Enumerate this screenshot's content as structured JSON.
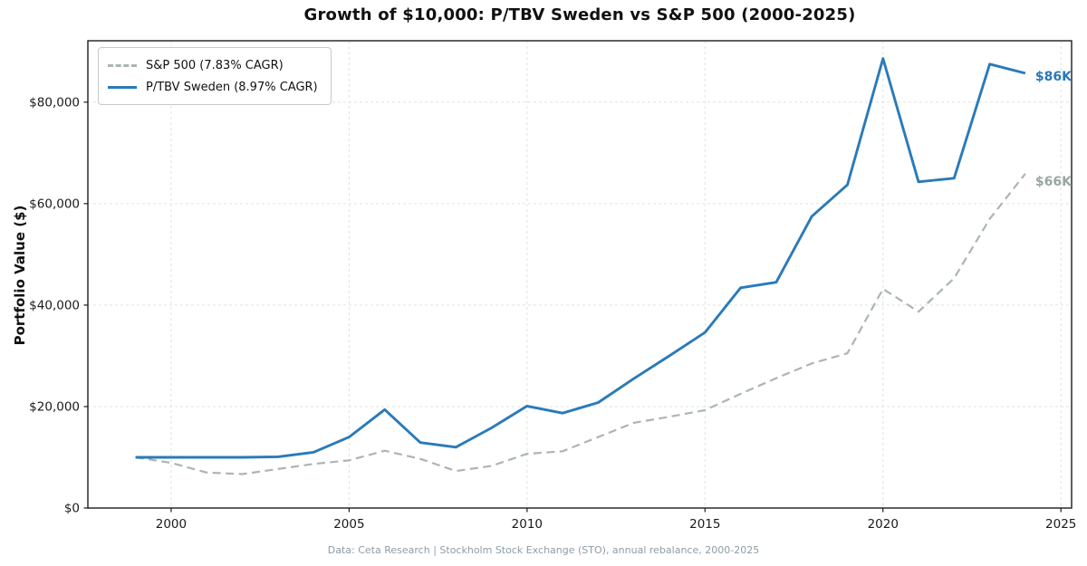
{
  "title": "Growth of $10,000: P/TBV Sweden vs S&P 500 (2000-2025)",
  "y_axis_label": "Portfolio Value ($)",
  "footer": "Data: Ceta Research | Stockholm Stock Exchange (STO), annual rebalance, 2000-2025",
  "legend": {
    "items": [
      {
        "label": "S&P 500 (7.83% CAGR)",
        "style": "dashed"
      },
      {
        "label": "P/TBV Sweden (8.97% CAGR)",
        "style": "solid"
      }
    ]
  },
  "colors": {
    "sweden_blue": "#2a7ab9",
    "sp500_gray": "#abb5b3",
    "sweden_label": "#2878b8",
    "sp500_label": "#99a5a3",
    "grid": "#dfe3e3",
    "spine": "#1c1c1c",
    "footer_text": "#8d9ca6"
  },
  "chart_data": {
    "type": "line",
    "title": "Growth of $10,000: P/TBV Sweden vs S&P 500 (2000-2025)",
    "xlabel": "",
    "ylabel": "Portfolio Value ($)",
    "x": [
      1999,
      2000,
      2001,
      2002,
      2003,
      2004,
      2005,
      2006,
      2007,
      2008,
      2009,
      2010,
      2011,
      2012,
      2013,
      2014,
      2015,
      2016,
      2017,
      2018,
      2019,
      2020,
      2021,
      2022,
      2023,
      2024
    ],
    "series": [
      {
        "name": "S&P 500 (7.83% CAGR)",
        "style": "dashed",
        "color": "#abb5b3",
        "label_color": "#99a5a3",
        "end_label": "$66K",
        "values": [
          10000,
          8900,
          7000,
          6700,
          7700,
          8700,
          9400,
          11300,
          9700,
          7300,
          8300,
          10700,
          11200,
          14000,
          16800,
          18000,
          19300,
          22500,
          25600,
          28500,
          30500,
          43200,
          38700,
          45300,
          57000,
          65900
        ]
      },
      {
        "name": "P/TBV Sweden (8.97% CAGR)",
        "style": "solid",
        "color": "#2a7ab9",
        "label_color": "#2878b8",
        "end_label": "$86K",
        "values": [
          10000,
          10000,
          10000,
          10000,
          10100,
          11000,
          14000,
          19400,
          12900,
          12000,
          15800,
          20100,
          18700,
          20800,
          25500,
          30000,
          34600,
          43400,
          44500,
          57500,
          63700,
          88600,
          64300,
          65000,
          87500,
          85700
        ]
      }
    ],
    "xticks": [
      2000,
      2005,
      2010,
      2015,
      2020,
      2025
    ],
    "yticks": [
      0,
      20000,
      40000,
      60000,
      80000
    ],
    "ytick_labels": [
      "$0",
      "$20,000",
      "$40,000",
      "$60,000",
      "$80,000"
    ],
    "xlim": [
      1997.66,
      2025.3
    ],
    "ylim": [
      0,
      92100
    ],
    "grid": true,
    "legend_position": "upper left"
  }
}
